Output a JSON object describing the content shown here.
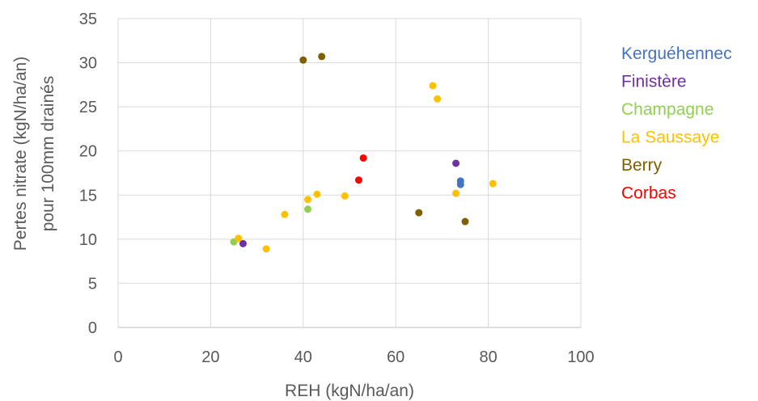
{
  "chart_data": {
    "type": "scatter",
    "xlabel": "REH (kgN/ha/an)",
    "ylabel_lines": [
      "Pertes nitrate (kgN/ha/an)",
      "pour 100mm drainés"
    ],
    "xlim": [
      0,
      100
    ],
    "ylim": [
      0,
      35
    ],
    "x_ticks": [
      "0",
      "20",
      "40",
      "60",
      "80",
      "100"
    ],
    "y_ticks": [
      "0",
      "5",
      "10",
      "15",
      "20",
      "25",
      "30",
      "35"
    ],
    "grid": true,
    "legend_position": "right",
    "series": [
      {
        "name": "Kerguéhennec",
        "color": "#4472C4",
        "points": [
          [
            74,
            16.6
          ],
          [
            74,
            16.2
          ]
        ]
      },
      {
        "name": "Finistère",
        "color": "#7030A0",
        "points": [
          [
            27,
            9.5
          ],
          [
            73,
            18.6
          ]
        ]
      },
      {
        "name": "Champagne",
        "color": "#92D050",
        "points": [
          [
            25,
            9.7
          ],
          [
            41,
            13.4
          ]
        ]
      },
      {
        "name": "La Saussaye",
        "color": "#FFC000",
        "points": [
          [
            26,
            10.1
          ],
          [
            32,
            8.9
          ],
          [
            36,
            12.8
          ],
          [
            41,
            14.5
          ],
          [
            43,
            15.1
          ],
          [
            49,
            14.9
          ],
          [
            68,
            27.4
          ],
          [
            69,
            25.9
          ],
          [
            73,
            15.2
          ],
          [
            81,
            16.3
          ]
        ]
      },
      {
        "name": "Berry",
        "color": "#7F6000",
        "points": [
          [
            40,
            30.3
          ],
          [
            44,
            30.7
          ],
          [
            65,
            13.0
          ],
          [
            75,
            12.0
          ]
        ]
      },
      {
        "name": "Corbas",
        "color": "#FF0000",
        "points": [
          [
            52,
            16.7
          ],
          [
            53,
            19.2
          ]
        ]
      }
    ]
  }
}
